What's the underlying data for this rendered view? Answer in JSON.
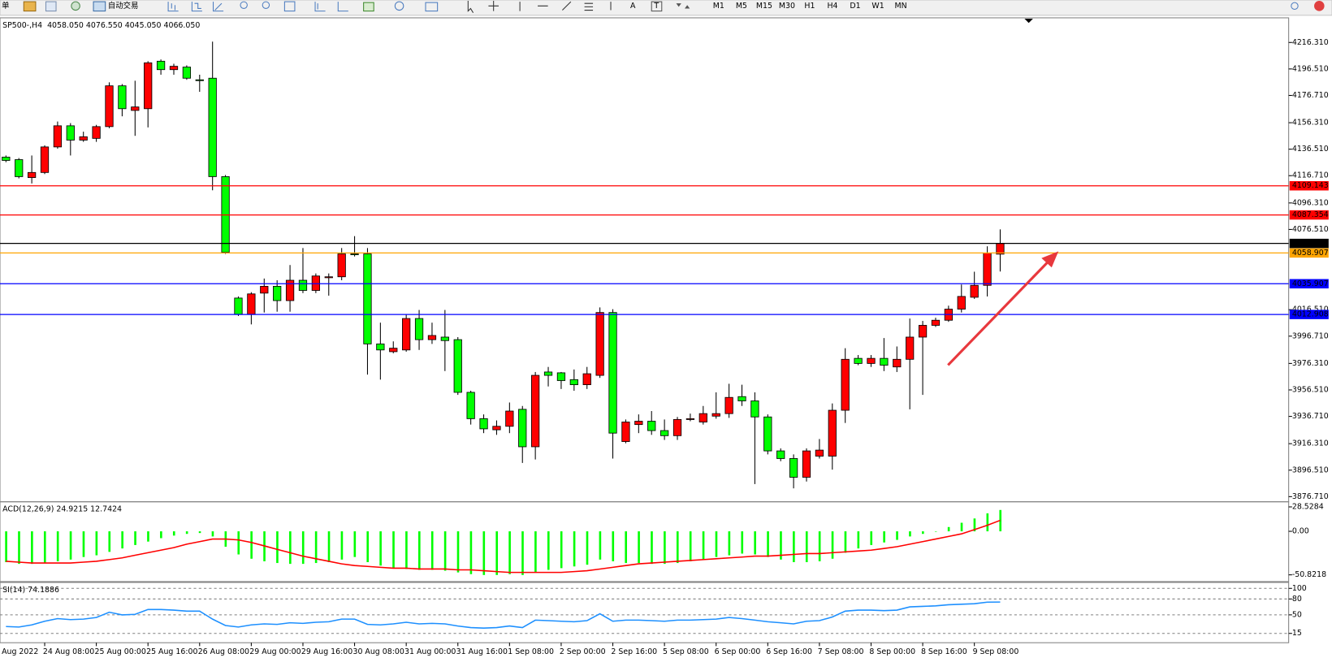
{
  "toolbar": {
    "order_tab": "单",
    "auto_trading": "自动交易",
    "text_tools": [
      "A",
      "T"
    ],
    "timeframes": [
      "M1",
      "M5",
      "M15",
      "M30",
      "H1",
      "H4",
      "D1",
      "W1",
      "MN"
    ]
  },
  "chart_data": [
    {
      "type": "candlestick",
      "title": "SP500-,H4  4058.050 4076.550 4045.050 4066.050",
      "date_label_left": "Aug 2022",
      "categories": [
        null,
        null,
        null,
        "24 Aug 08:00",
        null,
        null,
        null,
        "25 Aug 00:00",
        null,
        null,
        null,
        "25 Aug 16:00",
        null,
        null,
        null,
        "26 Aug 08:00",
        null,
        null,
        null,
        "29 Aug 00:00",
        null,
        null,
        null,
        "29 Aug 16:00",
        null,
        null,
        null,
        "30 Aug 08:00",
        null,
        null,
        null,
        "31 Aug 00:00",
        null,
        null,
        null,
        "31 Aug 16:00",
        null,
        null,
        null,
        "1 Sep 08:00",
        null,
        null,
        null,
        "2 Sep 00:00",
        null,
        null,
        null,
        "2 Sep 16:00",
        null,
        null,
        null,
        "5 Sep 08:00",
        null,
        null,
        null,
        "6 Sep 00:00",
        null,
        null,
        null,
        "6 Sep 16:00",
        null,
        null,
        null,
        "7 Sep 08:00",
        null,
        null,
        null,
        "8 Sep 00:00",
        null,
        null,
        null,
        "8 Sep 16:00",
        null,
        null,
        null,
        "9 Sep 08:00",
        null,
        null
      ],
      "open": [
        4130.6,
        4128.7,
        4115.3,
        4119.1,
        4138.2,
        4154.0,
        4143.3,
        4144.6,
        4153.4,
        4183.9,
        4165.5,
        4166.8,
        4202.3,
        4196.0,
        4197.9,
        4188.4,
        4189.6,
        4116.0,
        4025.2,
        4013.1,
        4028.9,
        4034.0,
        4023.3,
        4038.5,
        4030.9,
        4040.4,
        4041.1,
        4058.2,
        4058.2,
        3990.9,
        3985.1,
        3986.4,
        4009.9,
        3994.1,
        3996.0,
        3994.1,
        3954.7,
        3935.0,
        3926.7,
        3929.3,
        3942.0,
        3914.0,
        3969.9,
        3969.3,
        3964.2,
        3960.4,
        3967.4,
        4014.4,
        3917.9,
        3930.6,
        3933.1,
        3926.1,
        3922.3,
        3934.4,
        3932.5,
        3936.9,
        3938.8,
        3951.5,
        3948.3,
        3936.3,
        3910.9,
        3905.2,
        3891.2,
        3907.0,
        3907.0,
        3941.3,
        3980.1,
        3976.3,
        3980.1,
        3973.7,
        3979.4,
        3996.0,
        4004.8,
        4008.6,
        4016.9,
        4025.8,
        4034.7,
        4058.05
      ],
      "high": [
        4131.8,
        4129.9,
        4131.8,
        4139.4,
        4157.2,
        4156.0,
        4149.6,
        4154.7,
        4186.5,
        4185.2,
        4187.7,
        4202.3,
        4203.6,
        4200.4,
        4199.2,
        4192.2,
        4216.9,
        4117.2,
        4026.4,
        4029.6,
        4039.8,
        4038.5,
        4049.9,
        4062.6,
        4043.6,
        4043.6,
        4062.6,
        4071.5,
        4062.6,
        4006.8,
        3992.8,
        4013.1,
        4016.3,
        4006.8,
        4016.3,
        3996.0,
        3955.9,
        3938.2,
        3933.7,
        3947.1,
        3944.5,
        3969.9,
        3973.7,
        3969.9,
        3971.8,
        3973.7,
        4018.2,
        4016.9,
        3934.4,
        3938.2,
        3940.7,
        3934.4,
        3936.3,
        3938.8,
        3944.5,
        3954.7,
        3961.1,
        3960.4,
        3954.7,
        3938.2,
        3912.8,
        3908.3,
        3912.8,
        3919.8,
        3946.4,
        3987.7,
        3982.6,
        3982.6,
        3995.3,
        3989.0,
        4009.9,
        4008.1,
        4010.5,
        4019.5,
        4035.3,
        4044.9,
        4063.9,
        4076.55
      ],
      "low": [
        4126.8,
        4114.7,
        4110.9,
        4117.9,
        4136.9,
        4131.8,
        4142.0,
        4142.0,
        4152.2,
        4161.1,
        4146.5,
        4152.8,
        4192.2,
        4192.2,
        4188.4,
        4179.4,
        4105.8,
        4058.2,
        4011.8,
        4005.5,
        4014.4,
        4015.0,
        4015.0,
        4028.9,
        4028.9,
        4027.0,
        4038.5,
        4056.3,
        3968.0,
        3964.2,
        3983.9,
        3985.1,
        3986.4,
        3990.9,
        3970.6,
        3952.8,
        3930.6,
        3924.2,
        3922.9,
        3924.2,
        3901.9,
        3904.5,
        3959.1,
        3957.2,
        3955.9,
        3957.2,
        3965.5,
        3905.2,
        3916.6,
        3924.2,
        3922.9,
        3919.1,
        3919.1,
        3933.1,
        3930.6,
        3935.0,
        3935.6,
        3944.5,
        3886.1,
        3908.3,
        3903.2,
        3882.9,
        3888.0,
        3905.2,
        3896.9,
        3931.8,
        3975.0,
        3973.7,
        3970.6,
        3969.9,
        3942.0,
        3952.8,
        4003.6,
        4007.4,
        4014.4,
        4024.6,
        4026.4,
        4045.05
      ],
      "close": [
        4128.1,
        4116.0,
        4119.1,
        4138.2,
        4154.0,
        4143.3,
        4145.8,
        4153.4,
        4183.9,
        4166.8,
        4168.1,
        4201.1,
        4196.0,
        4198.5,
        4189.6,
        4188.2,
        4116.0,
        4059.4,
        4013.1,
        4028.3,
        4034.0,
        4023.3,
        4038.5,
        4030.9,
        4041.7,
        4041.1,
        4058.2,
        4057.6,
        3990.9,
        3986.4,
        3987.7,
        4009.9,
        3994.1,
        3997.2,
        3993.4,
        3954.7,
        3935.0,
        3927.4,
        3929.3,
        3940.7,
        3914.0,
        3967.4,
        3967.4,
        3963.5,
        3960.4,
        3968.6,
        4014.4,
        3924.2,
        3932.5,
        3933.1,
        3926.1,
        3922.3,
        3934.4,
        3935.0,
        3938.8,
        3938.8,
        3950.9,
        3948.3,
        3936.3,
        3910.9,
        3905.2,
        3891.2,
        3910.9,
        3911.5,
        3941.3,
        3979.4,
        3976.3,
        3980.1,
        3975.0,
        3979.4,
        3996.0,
        4004.8,
        4008.6,
        4016.9,
        4026.4,
        4034.7,
        4058.8,
        4066.05
      ],
      "up_color": "#ff0000",
      "down_color": "#00ff00",
      "ylim": [
        3873.5,
        4234.1
      ],
      "yticks": [
        {
          "value": 4216.31,
          "label": "4216.310"
        },
        {
          "value": 4196.51,
          "label": "4196.510"
        },
        {
          "value": 4176.71,
          "label": "4176.710"
        },
        {
          "value": 4156.31,
          "label": "4156.310"
        },
        {
          "value": 4136.51,
          "label": "4136.510"
        },
        {
          "value": 4116.71,
          "label": "4116.710"
        },
        {
          "value": 4096.31,
          "label": "4096.310"
        },
        {
          "value": 4076.51,
          "label": "4076.510"
        },
        {
          "value": 4016.51,
          "label": "4016.510"
        },
        {
          "value": 3996.71,
          "label": "3996.710"
        },
        {
          "value": 3976.31,
          "label": "3976.310"
        },
        {
          "value": 3956.51,
          "label": "3956.510"
        },
        {
          "value": 3936.71,
          "label": "3936.710"
        },
        {
          "value": 3916.31,
          "label": "3916.310"
        },
        {
          "value": 3896.51,
          "label": "3896.510"
        },
        {
          "value": 3876.71,
          "label": "3876.710"
        }
      ],
      "hlines": [
        {
          "value": 4109.143,
          "label": "4109.143",
          "color": "#ff0000"
        },
        {
          "value": 4087.354,
          "label": "4087.354",
          "color": "#ff0000"
        },
        {
          "value": 4066.05,
          "label": "4066.050",
          "color": "#000000"
        },
        {
          "value": 4058.907,
          "label": "4058.907",
          "color": "#ffa500"
        },
        {
          "value": 4035.907,
          "label": "4035.907",
          "color": "#0000ff"
        },
        {
          "value": 4012.908,
          "label": "4012.908",
          "color": "#0000ff"
        }
      ]
    },
    {
      "type": "combo",
      "title": "ACD(12,26,9) 24.9215 12.7424",
      "series": [
        {
          "type": "bar",
          "color": "#00ff00",
          "values": [
            -36,
            -38,
            -38,
            -37,
            -35,
            -33,
            -30,
            -28,
            -24,
            -20,
            -16,
            -12,
            -8,
            -5,
            -3,
            -2,
            -6,
            -18,
            -27,
            -32,
            -35,
            -37,
            -38,
            -38,
            -37,
            -36,
            -33,
            -30,
            -36,
            -40,
            -43,
            -44,
            -45,
            -45,
            -46,
            -48,
            -50,
            -51,
            -51,
            -50,
            -51,
            -48,
            -45,
            -43,
            -41,
            -39,
            -33,
            -35,
            -37,
            -37,
            -38,
            -38,
            -37,
            -35,
            -33,
            -30,
            -28,
            -26,
            -27,
            -30,
            -33,
            -36,
            -36,
            -35,
            -32,
            -25,
            -20,
            -16,
            -13,
            -10,
            -6,
            -3,
            0,
            5,
            10,
            15,
            21,
            24.9215
          ]
        },
        {
          "type": "line",
          "color": "#ff0000",
          "values": [
            -35,
            -36,
            -37,
            -37,
            -37,
            -37,
            -36,
            -35,
            -33,
            -31,
            -28,
            -25,
            -22,
            -19,
            -15,
            -12,
            -9,
            -9,
            -10,
            -13,
            -17,
            -21,
            -25,
            -29,
            -32,
            -35,
            -38,
            -40,
            -41,
            -42,
            -43,
            -43,
            -44,
            -44,
            -44,
            -45,
            -45,
            -46,
            -47,
            -48,
            -48,
            -48,
            -48,
            -48,
            -47,
            -46,
            -44,
            -42,
            -40,
            -38,
            -37,
            -36,
            -35,
            -34,
            -33,
            -32,
            -31,
            -30,
            -29,
            -29,
            -28,
            -27,
            -26,
            -26,
            -25,
            -24,
            -23,
            -22,
            -20,
            -18,
            -15,
            -12,
            -9,
            -6,
            -3,
            2,
            7,
            12.7424
          ]
        }
      ],
      "ylim": [
        -58.7,
        33.5
      ],
      "yticks": [
        28.5284,
        {
          "value": 0,
          "label": "0.00"
        },
        -50.8218
      ]
    },
    {
      "type": "line",
      "title": "SI(14) 74.1886",
      "grid": "dashed",
      "series": [
        {
          "color": "#1e90ff",
          "values": [
            28,
            27,
            31,
            38,
            43,
            41,
            42,
            45,
            55,
            50,
            51,
            60,
            60,
            59,
            57,
            57,
            42,
            30,
            27,
            31,
            33,
            32,
            35,
            34,
            36,
            37,
            42,
            42,
            32,
            31,
            33,
            36,
            33,
            34,
            33,
            29,
            26,
            25,
            26,
            29,
            26,
            40,
            39,
            38,
            37,
            39,
            52,
            38,
            40,
            40,
            39,
            38,
            40,
            40,
            41,
            42,
            45,
            43,
            40,
            37,
            35,
            33,
            38,
            39,
            46,
            57,
            59,
            59,
            58,
            59,
            65,
            66,
            67,
            69,
            70,
            71,
            74,
            74.1886
          ]
        }
      ],
      "ylim": [
        -2.6,
        109.6
      ],
      "yticks": [
        100,
        80,
        50,
        15
      ]
    }
  ]
}
